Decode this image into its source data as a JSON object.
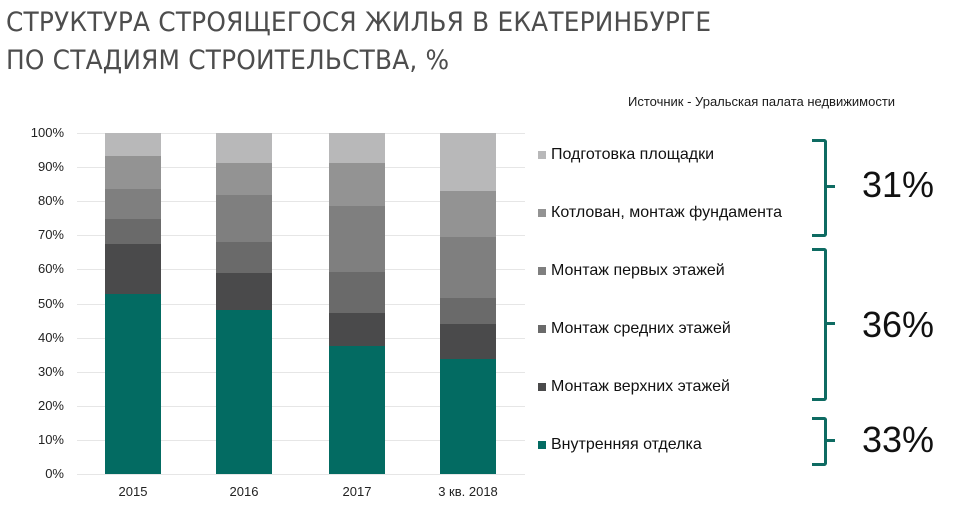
{
  "title": {
    "line1": "СТРУКТУРА СТРОЯЩЕГОСЯ ЖИЛЬЯ В ЕКАТЕРИНБУРГЕ",
    "line2": "ПО СТАДИЯМ СТРОИТЕЛЬСТВА, %"
  },
  "source": "Источник - Уральская палата недвижимости",
  "yticks": [
    "0%",
    "10%",
    "20%",
    "30%",
    "40%",
    "50%",
    "60%",
    "70%",
    "80%",
    "90%",
    "100%"
  ],
  "legend": [
    {
      "label": "Подготовка площадки",
      "color": "#b8b8b9"
    },
    {
      "label": "Котлован, монтаж фундамента",
      "color": "#939393"
    },
    {
      "label": "Монтаж первых этажей",
      "color": "#7f7f7f"
    },
    {
      "label": "Монтаж средних этажей",
      "color": "#6a6a6a"
    },
    {
      "label": "Монтаж верхних этажей",
      "color": "#4a4a4b"
    },
    {
      "label": "Внутренняя отделка",
      "color": "#036b62"
    }
  ],
  "groups": [
    {
      "value": "31%"
    },
    {
      "value": "36%"
    },
    {
      "value": "33%"
    }
  ],
  "accent_color": "#0e6b62",
  "chart_data": {
    "type": "bar",
    "stacked": true,
    "title": "СТРУКТУРА СТРОЯЩЕГОСЯ ЖИЛЬЯ В ЕКАТЕРИНБУРГЕ ПО СТАДИЯМ СТРОИТЕЛЬСТВА, %",
    "xlabel": "",
    "ylabel": "",
    "ylim": [
      0,
      100
    ],
    "categories": [
      "2015",
      "2016",
      "2017",
      "3 кв. 2018"
    ],
    "series": [
      {
        "name": "Внутренняя отделка",
        "color": "#036b62",
        "values": [
          52.9,
          48.1,
          37.6,
          33.6
        ]
      },
      {
        "name": "Монтаж верхних этажей",
        "color": "#4a4a4b",
        "values": [
          14.6,
          10.9,
          9.7,
          10.4
        ]
      },
      {
        "name": "Монтаж средних этажей",
        "color": "#6a6a6a",
        "values": [
          7.2,
          9.1,
          12.0,
          7.7
        ]
      },
      {
        "name": "Монтаж первых этажей",
        "color": "#7f7f7f",
        "values": [
          9.0,
          13.8,
          19.4,
          17.8
        ]
      },
      {
        "name": "Котлован, монтаж фундамента",
        "color": "#939393",
        "values": [
          9.6,
          9.4,
          12.4,
          13.4
        ]
      },
      {
        "name": "Подготовка площадки",
        "color": "#b8b8b9",
        "values": [
          6.7,
          8.7,
          8.9,
          17.1
        ]
      }
    ],
    "annotations": [
      {
        "series": [
          "Подготовка площадки",
          "Котлован, монтаж фундамента"
        ],
        "label": "31%"
      },
      {
        "series": [
          "Монтаж первых этажей",
          "Монтаж средних этажей",
          "Монтаж верхних этажей"
        ],
        "label": "36%"
      },
      {
        "series": [
          "Внутренняя отделка"
        ],
        "label": "33%"
      }
    ],
    "source": "Источник - Уральская палата недвижимости",
    "grid": true,
    "legend_position": "right"
  }
}
